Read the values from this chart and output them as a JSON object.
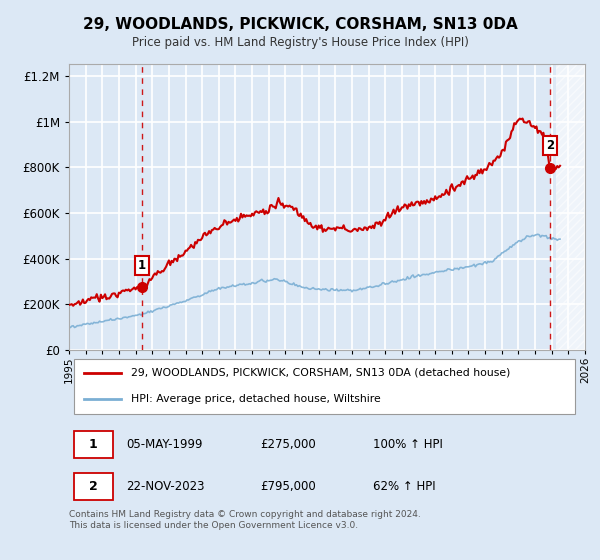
{
  "title": "29, WOODLANDS, PICKWICK, CORSHAM, SN13 0DA",
  "subtitle": "Price paid vs. HM Land Registry's House Price Index (HPI)",
  "xlim": [
    1995,
    2026
  ],
  "ylim": [
    0,
    1250000
  ],
  "yticks": [
    0,
    200000,
    400000,
    600000,
    800000,
    1000000,
    1200000
  ],
  "ytick_labels": [
    "£0",
    "£200K",
    "£400K",
    "£600K",
    "£800K",
    "£1M",
    "£1.2M"
  ],
  "background_color": "#dce8f5",
  "plot_bg_color": "#dce8f5",
  "grid_color": "#ffffff",
  "property_color": "#cc0000",
  "hpi_color": "#7bafd4",
  "marker1_x": 1999.37,
  "marker1_y": 275000,
  "marker2_x": 2023.9,
  "marker2_y": 795000,
  "vline1_x": 1999.37,
  "vline2_x": 2023.9,
  "legend_property": "29, WOODLANDS, PICKWICK, CORSHAM, SN13 0DA (detached house)",
  "legend_hpi": "HPI: Average price, detached house, Wiltshire",
  "table_row1": [
    "1",
    "05-MAY-1999",
    "£275,000",
    "100% ↑ HPI"
  ],
  "table_row2": [
    "2",
    "22-NOV-2023",
    "£795,000",
    "62% ↑ HPI"
  ],
  "footer": "Contains HM Land Registry data © Crown copyright and database right 2024.\nThis data is licensed under the Open Government Licence v3.0."
}
